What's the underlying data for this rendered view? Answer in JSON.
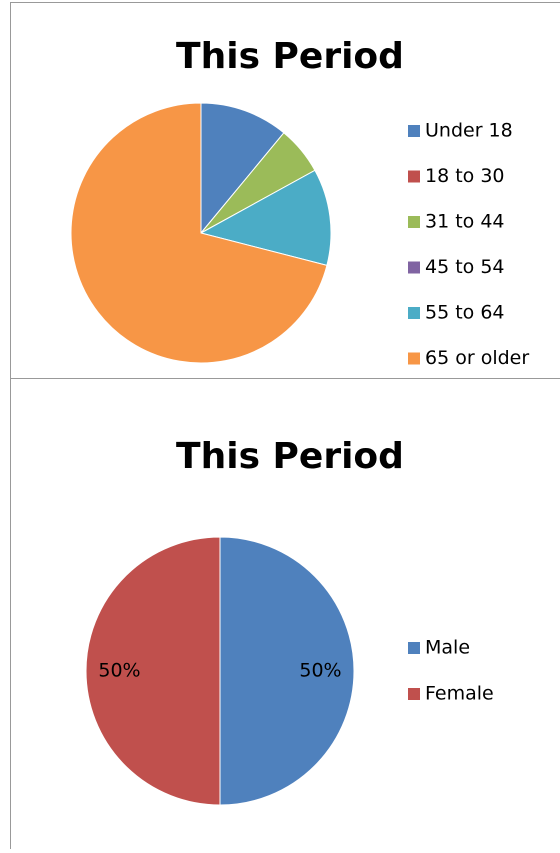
{
  "chart_data": [
    {
      "type": "pie",
      "title": "This Period",
      "categories": [
        "Under 18",
        "18 to 30",
        "31 to 44",
        "45 to 54",
        "55 to 64",
        "65 or older"
      ],
      "values": [
        11,
        0,
        6,
        0,
        12,
        71
      ],
      "colors": [
        "#4f81bd",
        "#c0504d",
        "#9bbb59",
        "#8064a2",
        "#4bacc6",
        "#f79646"
      ],
      "legend": "right"
    },
    {
      "type": "pie",
      "title": "This Period",
      "categories": [
        "Male",
        "Female"
      ],
      "values": [
        50,
        50
      ],
      "value_labels": [
        "50%",
        "50%"
      ],
      "colors": [
        "#4f81bd",
        "#c0504d"
      ],
      "legend": "right"
    }
  ]
}
